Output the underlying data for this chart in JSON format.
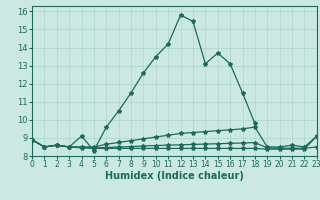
{
  "xlabel": "Humidex (Indice chaleur)",
  "xlim": [
    0,
    23
  ],
  "ylim": [
    8.0,
    16.3
  ],
  "yticks": [
    8,
    9,
    10,
    11,
    12,
    13,
    14,
    15,
    16
  ],
  "xticks": [
    0,
    1,
    2,
    3,
    4,
    5,
    6,
    7,
    8,
    9,
    10,
    11,
    12,
    13,
    14,
    15,
    16,
    17,
    18,
    19,
    20,
    21,
    22,
    23
  ],
  "bg_color": "#cce8e2",
  "grid_color": "#aad4cc",
  "line_color": "#1a6b5a",
  "series1_x": [
    0,
    1,
    2,
    3,
    4,
    5,
    6,
    7,
    8,
    9,
    10,
    11,
    12,
    13,
    14,
    15,
    16,
    17,
    18
  ],
  "series1_y": [
    8.9,
    8.5,
    8.6,
    8.5,
    9.1,
    8.3,
    9.6,
    10.5,
    11.5,
    12.6,
    13.5,
    14.2,
    15.8,
    15.45,
    13.1,
    13.7,
    13.1,
    11.5,
    9.8
  ],
  "series2_x": [
    0,
    1,
    2,
    3,
    4,
    5,
    6,
    7,
    8,
    9,
    10,
    11,
    12,
    13,
    14,
    15,
    16,
    17,
    18,
    19,
    20,
    21,
    22,
    23
  ],
  "series2_y": [
    8.9,
    8.5,
    8.6,
    8.5,
    8.5,
    8.5,
    8.65,
    8.75,
    8.85,
    8.95,
    9.05,
    9.15,
    9.25,
    9.3,
    9.35,
    9.4,
    9.45,
    9.5,
    9.6,
    8.5,
    8.5,
    8.6,
    8.5,
    9.1
  ],
  "series3_x": [
    0,
    1,
    2,
    3,
    4,
    5,
    6,
    7,
    8,
    9,
    10,
    11,
    12,
    13,
    14,
    15,
    16,
    17,
    18,
    19,
    20,
    21,
    22,
    23
  ],
  "series3_y": [
    8.9,
    8.5,
    8.6,
    8.5,
    8.48,
    8.45,
    8.47,
    8.5,
    8.52,
    8.55,
    8.58,
    8.6,
    8.62,
    8.64,
    8.66,
    8.68,
    8.7,
    8.72,
    8.74,
    8.45,
    8.43,
    8.43,
    8.43,
    8.5
  ],
  "series4_x": [
    0,
    1,
    2,
    3,
    4,
    5,
    6,
    7,
    8,
    9,
    10,
    11,
    12,
    13,
    14,
    15,
    16,
    17,
    18,
    19,
    20,
    21,
    22,
    23
  ],
  "series4_y": [
    8.9,
    8.5,
    8.6,
    8.5,
    8.45,
    8.42,
    8.42,
    8.42,
    8.42,
    8.42,
    8.42,
    8.42,
    8.42,
    8.42,
    8.42,
    8.42,
    8.42,
    8.42,
    8.42,
    8.38,
    8.38,
    8.38,
    8.38,
    9.1
  ]
}
